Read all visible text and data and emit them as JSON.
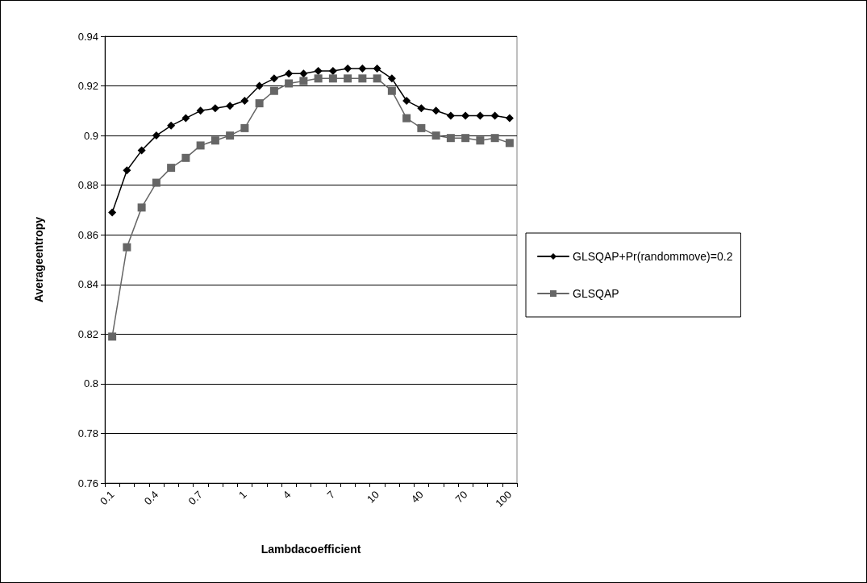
{
  "chart_data": {
    "type": "line",
    "xlabel": "Lambdacoefficient",
    "ylabel": "Averageentropy",
    "categories": [
      "0.1",
      null,
      null,
      "0.4",
      null,
      null,
      "0.7",
      null,
      null,
      "1",
      null,
      null,
      "4",
      null,
      null,
      "7",
      null,
      null,
      "10",
      null,
      null,
      "40",
      null,
      null,
      "70",
      null,
      null,
      "100"
    ],
    "series": [
      {
        "name": "GLSQAP+Pr(randommove)=0.2",
        "color": "#000000",
        "marker": "diamond",
        "values": [
          0.869,
          0.886,
          0.894,
          0.9,
          0.904,
          0.907,
          0.91,
          0.911,
          0.912,
          0.914,
          0.92,
          0.923,
          0.925,
          0.925,
          0.926,
          0.926,
          0.927,
          0.927,
          0.927,
          0.923,
          0.914,
          0.911,
          0.91,
          0.908,
          0.908,
          0.908,
          0.908,
          0.907
        ]
      },
      {
        "name": "GLSQAP",
        "color": "#666666",
        "marker": "square",
        "values": [
          0.819,
          0.855,
          0.871,
          0.881,
          0.887,
          0.891,
          0.896,
          0.898,
          0.9,
          0.903,
          0.913,
          0.918,
          0.921,
          0.922,
          0.923,
          0.923,
          0.923,
          0.923,
          0.923,
          0.918,
          0.907,
          0.903,
          0.9,
          0.899,
          0.899,
          0.898,
          0.899,
          0.897
        ]
      }
    ],
    "ylim": [
      0.76,
      0.94
    ],
    "yticks": [
      0.76,
      0.78,
      0.8,
      0.82,
      0.84,
      0.86,
      0.88,
      0.9,
      0.92,
      0.94
    ],
    "grid": "y",
    "legend": "right"
  }
}
